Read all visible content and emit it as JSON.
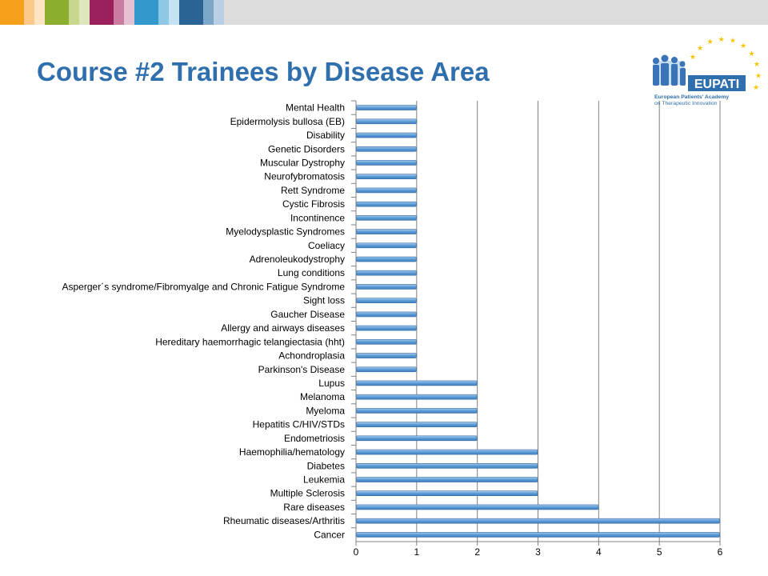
{
  "slide": {
    "title": "Course #2 Trainees by Disease Area"
  },
  "logo": {
    "wordmark": "EUPATI",
    "tagline_line1": "European Patients' Academy",
    "tagline_line2": "on Therapeutic Innovation"
  },
  "strip_colors": [
    "#f7a01b",
    "#fbc98a",
    "#fde4c3",
    "#8cae2e",
    "#c7d78d",
    "#dde6bd",
    "#9b1f5c",
    "#c97ba0",
    "#e6c1d3",
    "#3399cc",
    "#8ec7e6",
    "#c5e2f2",
    "#2a6496",
    "#7ea6c9",
    "#b9cfe4",
    "#dcdcdc"
  ],
  "chart_data": {
    "type": "bar",
    "orientation": "horizontal",
    "title": "",
    "xlabel": "",
    "ylabel": "",
    "xlim": [
      0,
      6
    ],
    "xticks": [
      "0",
      "1",
      "2",
      "3",
      "4",
      "5",
      "6"
    ],
    "grid": true,
    "legend": "none",
    "bar_color": "#5b9bd5",
    "categories": [
      "Mental Health",
      "Epidermolysis bullosa (EB)",
      "Disability",
      "Genetic Disorders",
      "Muscular Dystrophy",
      "Neurofybromatosis",
      "Rett Syndrome",
      "Cystic Fibrosis",
      "Incontinence",
      "Myelodysplastic Syndromes",
      "Coeliacy",
      "Adrenoleukodystrophy",
      "Lung conditions",
      "Asperger´s syndrome/Fibromyalge and Chronic Fatigue Syndrome",
      "Sight loss",
      "Gaucher Disease",
      "Allergy and airways diseases",
      "Hereditary haemorrhagic telangiectasia (hht)",
      "Achondroplasia",
      "Parkinson's Disease",
      "Lupus",
      "Melanoma",
      "Myeloma",
      "Hepatitis C/HIV/STDs",
      "Endometriosis",
      "Haemophilia/hematology",
      "Diabetes",
      "Leukemia",
      "Multiple Sclerosis",
      "Rare diseases",
      "Rheumatic diseases/Arthritis",
      "Cancer"
    ],
    "values": [
      1,
      1,
      1,
      1,
      1,
      1,
      1,
      1,
      1,
      1,
      1,
      1,
      1,
      1,
      1,
      1,
      1,
      1,
      1,
      1,
      2,
      2,
      2,
      2,
      2,
      3,
      3,
      3,
      3,
      4,
      6,
      6
    ]
  }
}
